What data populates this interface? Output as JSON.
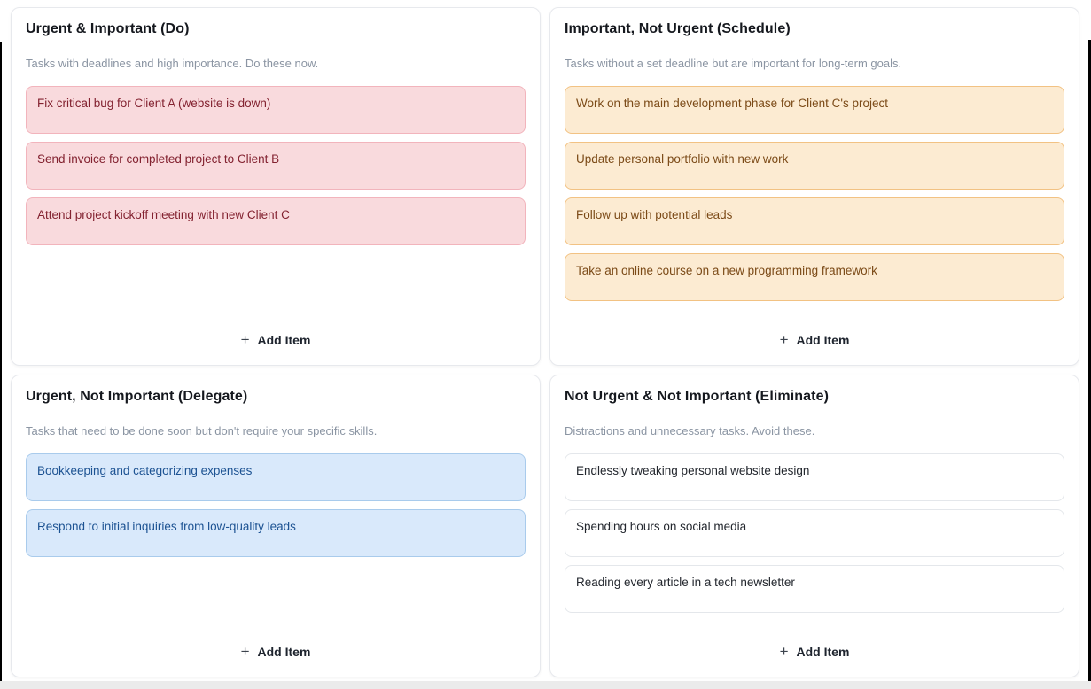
{
  "app": {
    "add_item_label": "Add Item",
    "plus_glyph": "+"
  },
  "quadrants": [
    {
      "id": "do",
      "title": "Urgent & Important (Do)",
      "subtitle": "Tasks with deadlines and high importance. Do these now.",
      "item_bg": "#f9dadd",
      "item_border": "#f2b4bc",
      "item_text": "#832230",
      "items": [
        "Fix critical bug for Client A (website is down)",
        "Send invoice for completed project to Client B",
        "Attend project kickoff meeting with new Client C"
      ]
    },
    {
      "id": "schedule",
      "title": "Important, Not Urgent (Schedule)",
      "subtitle": "Tasks without a set deadline but are important for long-term goals.",
      "item_bg": "#fcebd2",
      "item_border": "#f2c283",
      "item_text": "#7b4a17",
      "items": [
        "Work on the main development phase for Client C's project",
        "Update personal portfolio with new work",
        "Follow up with potential leads",
        "Take an online course on a new programming framework"
      ]
    },
    {
      "id": "delegate",
      "title": "Urgent, Not Important (Delegate)",
      "subtitle": "Tasks that need to be done soon but don't require your specific skills.",
      "item_bg": "#d9e9fb",
      "item_border": "#a9cbec",
      "item_text": "#1c5292",
      "items": [
        "Bookkeeping and categorizing expenses",
        "Respond to initial inquiries from low-quality leads"
      ]
    },
    {
      "id": "eliminate",
      "title": "Not Urgent & Not Important (Eliminate)",
      "subtitle": "Distractions and unnecessary tasks. Avoid these.",
      "item_bg": "#ffffff",
      "item_border": "#e4e7eb",
      "item_text": "#23272e",
      "items": [
        "Endlessly tweaking personal website design",
        "Spending hours on social media",
        "Reading every article in a tech newsletter"
      ]
    }
  ]
}
